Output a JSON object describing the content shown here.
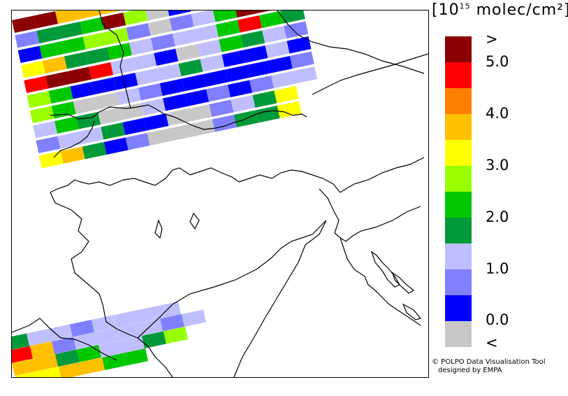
{
  "unit_label": {
    "open": "[10",
    "exp": "15",
    "text": " molec/cm²]"
  },
  "legend": {
    "colors": [
      "#c8c8c8",
      "#0000ff",
      "#8080ff",
      "#bfbfff",
      "#009a3a",
      "#00c800",
      "#99ff00",
      "#ffff00",
      "#ffc000",
      "#ff8000",
      "#ff0000",
      "#8b0000"
    ],
    "tick_labels": [
      "<",
      "0.0",
      "1.0",
      "2.0",
      "3.0",
      "4.0",
      "5.0",
      ">"
    ]
  },
  "credits": {
    "line1": "© POLPO Data Visualisation Tool",
    "line2": "designed by EMPA"
  },
  "map": {
    "swaths": [
      {
        "cells": [
          11,
          11,
          8,
          8,
          8,
          7,
          6,
          5,
          4,
          4,
          4,
          10,
          10
        ]
      },
      {
        "cells": [
          2,
          4,
          4,
          5,
          11,
          6,
          0,
          1,
          3,
          4,
          3,
          11,
          5
        ]
      },
      {
        "cells": [
          1,
          5,
          5,
          6,
          6,
          2,
          0,
          2,
          3,
          5,
          11,
          11,
          6
        ]
      },
      {
        "cells": [
          7,
          8,
          4,
          4,
          5,
          3,
          2,
          3,
          3,
          5,
          10,
          5,
          4
        ]
      },
      {
        "cells": [
          10,
          11,
          11,
          10,
          3,
          3,
          1,
          0,
          3,
          5,
          4,
          3,
          2
        ]
      },
      {
        "cells": [
          6,
          5,
          1,
          1,
          1,
          3,
          3,
          4,
          3,
          1,
          1,
          3,
          1
        ]
      },
      {
        "cells": [
          6,
          5,
          0,
          0,
          3,
          2,
          1,
          1,
          1,
          1,
          1,
          1,
          2
        ]
      },
      {
        "cells": [
          3,
          5,
          4,
          0,
          0,
          3,
          1,
          1,
          2,
          1,
          2,
          3,
          3
        ]
      },
      {
        "cells": [
          2,
          3,
          3,
          4,
          1,
          1,
          0,
          0,
          2,
          3,
          4,
          7
        ]
      },
      {
        "cells": [
          7,
          8,
          4,
          1,
          2,
          0,
          0,
          0,
          2,
          4,
          4,
          7
        ]
      }
    ],
    "lower_swaths": [
      {
        "cells": [
          4,
          3,
          3,
          2,
          3,
          3,
          3,
          3
        ]
      },
      {
        "cells": [
          10,
          8,
          2,
          3,
          3,
          3,
          3,
          2,
          3
        ]
      },
      {
        "cells": [
          8,
          8,
          4,
          5,
          3,
          3,
          4,
          6
        ]
      },
      {
        "cells": [
          7,
          7,
          8,
          8,
          5,
          5
        ]
      }
    ]
  }
}
